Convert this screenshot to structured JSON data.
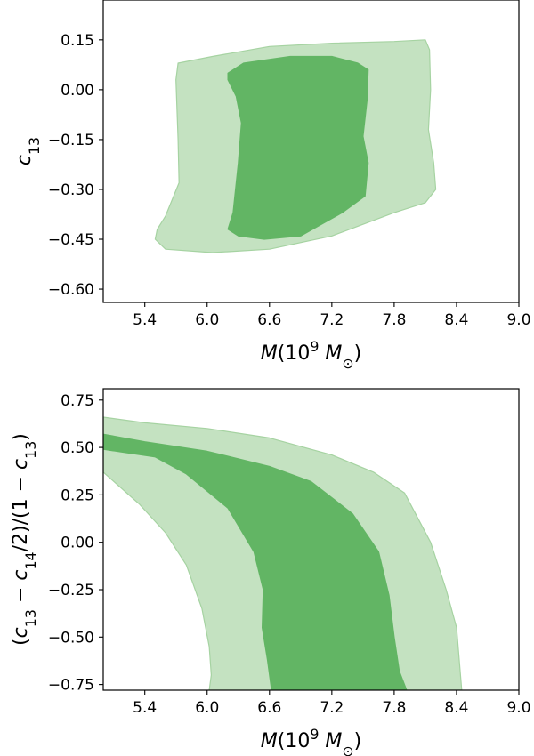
{
  "chart_data": [
    {
      "type": "contour",
      "title": "",
      "xlabel": "M(10^9 M_⊙)",
      "ylabel": "c_13",
      "xlim": [
        5.0,
        9.0
      ],
      "ylim": [
        -0.64,
        0.27
      ],
      "xticks": [
        "5.4",
        "6.0",
        "6.6",
        "7.2",
        "7.8",
        "8.4",
        "9.0"
      ],
      "yticks": [
        "0.15",
        "0.00",
        "−0.15",
        "−0.30",
        "−0.45",
        "−0.60"
      ],
      "grid": false,
      "legend": "none",
      "series": [
        {
          "level": "outer",
          "color": "#c4e2c1",
          "edge": "#a6d3a2",
          "points": [
            [
              5.72,
              0.08
            ],
            [
              6.05,
              0.1
            ],
            [
              6.6,
              0.13
            ],
            [
              7.2,
              0.14
            ],
            [
              7.8,
              0.145
            ],
            [
              8.1,
              0.15
            ],
            [
              8.14,
              0.12
            ],
            [
              8.15,
              0.0
            ],
            [
              8.13,
              -0.12
            ],
            [
              8.18,
              -0.22
            ],
            [
              8.2,
              -0.3
            ],
            [
              8.1,
              -0.34
            ],
            [
              7.8,
              -0.37
            ],
            [
              7.2,
              -0.44
            ],
            [
              6.6,
              -0.48
            ],
            [
              6.05,
              -0.49
            ],
            [
              5.6,
              -0.48
            ],
            [
              5.5,
              -0.45
            ],
            [
              5.52,
              -0.42
            ],
            [
              5.6,
              -0.38
            ],
            [
              5.73,
              -0.28
            ],
            [
              5.72,
              -0.15
            ],
            [
              5.71,
              -0.06
            ],
            [
              5.7,
              0.03
            ]
          ]
        },
        {
          "level": "inner",
          "color": "#62b564",
          "edge": "#62b564",
          "points": [
            [
              6.2,
              0.05
            ],
            [
              6.35,
              0.08
            ],
            [
              6.8,
              0.1
            ],
            [
              7.2,
              0.1
            ],
            [
              7.45,
              0.08
            ],
            [
              7.55,
              0.06
            ],
            [
              7.54,
              -0.03
            ],
            [
              7.5,
              -0.14
            ],
            [
              7.55,
              -0.22
            ],
            [
              7.52,
              -0.32
            ],
            [
              7.3,
              -0.37
            ],
            [
              6.9,
              -0.44
            ],
            [
              6.55,
              -0.45
            ],
            [
              6.3,
              -0.44
            ],
            [
              6.2,
              -0.42
            ],
            [
              6.25,
              -0.37
            ],
            [
              6.3,
              -0.22
            ],
            [
              6.33,
              -0.1
            ],
            [
              6.28,
              -0.02
            ],
            [
              6.2,
              0.03
            ]
          ]
        }
      ]
    },
    {
      "type": "contour",
      "title": "",
      "xlabel": "M(10^9 M_⊙)",
      "ylabel": "(c_13 − c_14/2)/(1 − c_13)",
      "xlim": [
        5.0,
        9.0
      ],
      "ylim": [
        -0.78,
        0.81
      ],
      "xticks": [
        "5.4",
        "6.0",
        "6.6",
        "7.2",
        "7.8",
        "8.4",
        "9.0"
      ],
      "yticks": [
        "0.75",
        "0.50",
        "0.25",
        "0.00",
        "−0.25",
        "−0.50",
        "−0.75"
      ],
      "grid": false,
      "legend": "none",
      "series": [
        {
          "level": "outer",
          "color": "#c4e2c1",
          "edge": "#a6d3a2",
          "points": [
            [
              5.0,
              0.66
            ],
            [
              5.4,
              0.63
            ],
            [
              6.0,
              0.6
            ],
            [
              6.6,
              0.55
            ],
            [
              7.2,
              0.46
            ],
            [
              7.6,
              0.37
            ],
            [
              7.9,
              0.26
            ],
            [
              8.15,
              0.0
            ],
            [
              8.3,
              -0.25
            ],
            [
              8.4,
              -0.45
            ],
            [
              8.45,
              -0.78
            ],
            [
              6.02,
              -0.78
            ],
            [
              6.04,
              -0.7
            ],
            [
              6.02,
              -0.55
            ],
            [
              5.95,
              -0.35
            ],
            [
              5.8,
              -0.12
            ],
            [
              5.6,
              0.05
            ],
            [
              5.35,
              0.2
            ],
            [
              5.0,
              0.37
            ]
          ]
        },
        {
          "level": "inner",
          "color": "#62b564",
          "edge": "#62b564",
          "points": [
            [
              5.0,
              0.57
            ],
            [
              5.4,
              0.53
            ],
            [
              6.0,
              0.48
            ],
            [
              6.6,
              0.4
            ],
            [
              7.0,
              0.32
            ],
            [
              7.4,
              0.15
            ],
            [
              7.65,
              -0.05
            ],
            [
              7.75,
              -0.28
            ],
            [
              7.8,
              -0.5
            ],
            [
              7.85,
              -0.68
            ],
            [
              7.92,
              -0.78
            ],
            [
              6.62,
              -0.78
            ],
            [
              6.58,
              -0.62
            ],
            [
              6.53,
              -0.45
            ],
            [
              6.54,
              -0.25
            ],
            [
              6.45,
              -0.05
            ],
            [
              6.2,
              0.18
            ],
            [
              5.8,
              0.36
            ],
            [
              5.5,
              0.45
            ],
            [
              5.0,
              0.49
            ]
          ]
        }
      ]
    }
  ]
}
